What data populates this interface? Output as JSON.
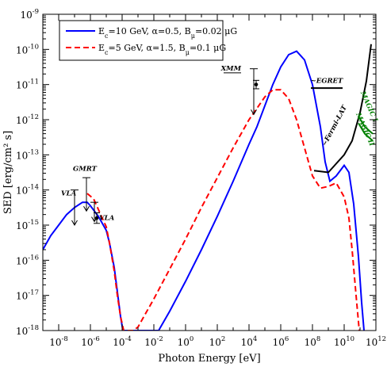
{
  "chart_data": {
    "type": "line",
    "xlabel": "Photon Energy [eV]",
    "ylabel": "SED [erg/cm² s]",
    "x_scale": "log",
    "y_scale": "log",
    "xlim_log10": [
      -9,
      12
    ],
    "ylim_log10": [
      -18,
      -9
    ],
    "x_ticks": [
      {
        "exp": -8,
        "base": "10",
        "sup": "-8"
      },
      {
        "exp": -6,
        "base": "10",
        "sup": "-6"
      },
      {
        "exp": -4,
        "base": "10",
        "sup": "-4"
      },
      {
        "exp": -2,
        "base": "10",
        "sup": "-2"
      },
      {
        "exp": 0,
        "base": "10",
        "sup": "0"
      },
      {
        "exp": 2,
        "base": "10",
        "sup": "2"
      },
      {
        "exp": 4,
        "base": "10",
        "sup": "4"
      },
      {
        "exp": 6,
        "base": "10",
        "sup": "6"
      },
      {
        "exp": 8,
        "base": "10",
        "sup": "8"
      },
      {
        "exp": 10,
        "base": "10",
        "sup": "10"
      },
      {
        "exp": 12,
        "base": "10",
        "sup": "12"
      }
    ],
    "y_ticks": [
      {
        "exp": -18,
        "base": "10",
        "sup": "-18"
      },
      {
        "exp": -17,
        "base": "10",
        "sup": "-17"
      },
      {
        "exp": -16,
        "base": "10",
        "sup": "-16"
      },
      {
        "exp": -15,
        "base": "10",
        "sup": "-15"
      },
      {
        "exp": -14,
        "base": "10",
        "sup": "-14"
      },
      {
        "exp": -13,
        "base": "10",
        "sup": "-13"
      },
      {
        "exp": -12,
        "base": "10",
        "sup": "-12"
      },
      {
        "exp": -11,
        "base": "10",
        "sup": "-11"
      },
      {
        "exp": -10,
        "base": "10",
        "sup": "-10"
      },
      {
        "exp": -9,
        "base": "10",
        "sup": "-9"
      }
    ],
    "legend_position": "top-left",
    "series": [
      {
        "name": "Ec=10 GeV, α=0.5, Bμ=0.02 μG",
        "legend_parts": {
          "e": "E",
          "c": "c",
          "mid": "=10 GeV, α=0.5, B",
          "mu": "μ",
          "end": "=0.02 μG"
        },
        "color": "#0000ff",
        "dash": "solid",
        "points_log10": [
          [
            -9,
            -15.7
          ],
          [
            -8.5,
            -15.3
          ],
          [
            -8,
            -15.0
          ],
          [
            -7.5,
            -14.7
          ],
          [
            -7,
            -14.5
          ],
          [
            -6.5,
            -14.35
          ],
          [
            -6.2,
            -14.35
          ],
          [
            -6,
            -14.45
          ],
          [
            -5.5,
            -14.75
          ],
          [
            -5,
            -15.15
          ],
          [
            -4.8,
            -15.5
          ],
          [
            -4.5,
            -16.2
          ],
          [
            -4.3,
            -16.9
          ],
          [
            -4.1,
            -17.6
          ],
          [
            -3.95,
            -18.0
          ],
          [
            -1.7,
            -18.0
          ],
          [
            -1,
            -17.45
          ],
          [
            0,
            -16.6
          ],
          [
            1,
            -15.7
          ],
          [
            2,
            -14.75
          ],
          [
            3,
            -13.75
          ],
          [
            4,
            -12.7
          ],
          [
            4.5,
            -12.2
          ],
          [
            5,
            -11.6
          ],
          [
            5.5,
            -11.0
          ],
          [
            6,
            -10.5
          ],
          [
            6.5,
            -10.15
          ],
          [
            7,
            -10.05
          ],
          [
            7.5,
            -10.3
          ],
          [
            8,
            -11.0
          ],
          [
            8.5,
            -12.2
          ],
          [
            8.8,
            -13.2
          ],
          [
            9.1,
            -13.75
          ],
          [
            9.5,
            -13.6
          ],
          [
            10,
            -13.3
          ],
          [
            10.3,
            -13.5
          ],
          [
            10.6,
            -14.4
          ],
          [
            10.9,
            -15.9
          ],
          [
            11.1,
            -17.2
          ],
          [
            11.25,
            -18.0
          ]
        ]
      },
      {
        "name": "Ec=5 GeV, α=1.5, B μ=0.1 μG",
        "legend_parts": {
          "e": "E",
          "c": "c",
          "mid": "=5 GeV, α=1.5, B",
          "mu": "μ",
          "end": "=0.1 μG"
        },
        "color": "#ff0000",
        "dash": "dashed",
        "points_log10": [
          [
            -6.2,
            -14.1
          ],
          [
            -5.8,
            -14.25
          ],
          [
            -5.5,
            -14.55
          ],
          [
            -5,
            -15.05
          ],
          [
            -4.8,
            -15.5
          ],
          [
            -4.5,
            -16.3
          ],
          [
            -4.3,
            -17.0
          ],
          [
            -4.1,
            -17.6
          ],
          [
            -3.9,
            -18.0
          ],
          [
            -3.3,
            -18.0
          ],
          [
            -3,
            -17.9
          ],
          [
            -2.5,
            -17.5
          ],
          [
            -2,
            -17.1
          ],
          [
            -1,
            -16.25
          ],
          [
            0,
            -15.4
          ],
          [
            1,
            -14.5
          ],
          [
            2,
            -13.65
          ],
          [
            3,
            -12.8
          ],
          [
            4,
            -12.0
          ],
          [
            5,
            -11.35
          ],
          [
            5.5,
            -11.15
          ],
          [
            6,
            -11.15
          ],
          [
            6.5,
            -11.4
          ],
          [
            7,
            -12.0
          ],
          [
            7.5,
            -12.8
          ],
          [
            8,
            -13.6
          ],
          [
            8.5,
            -13.95
          ],
          [
            9,
            -13.9
          ],
          [
            9.5,
            -13.8
          ],
          [
            10,
            -14.2
          ],
          [
            10.3,
            -14.8
          ],
          [
            10.5,
            -15.7
          ],
          [
            10.75,
            -17.0
          ],
          [
            10.95,
            -18.0
          ]
        ]
      }
    ],
    "limit_curves": [
      {
        "name": "EGRET",
        "color": "#000000",
        "points_log10": [
          [
            7.9,
            -11.1
          ],
          [
            9.9,
            -11.1
          ]
        ]
      },
      {
        "name": "Fermi-LAT",
        "color": "#000000",
        "points_log10": [
          [
            8.1,
            -13.45
          ],
          [
            9.0,
            -13.5
          ],
          [
            10.0,
            -13.0
          ],
          [
            10.5,
            -12.6
          ],
          [
            11.0,
            -11.8
          ],
          [
            11.4,
            -10.9
          ],
          [
            11.7,
            -9.85
          ]
        ]
      },
      {
        "name": "MAGIC I",
        "color": "#008000",
        "points_log10": [
          [
            10.9,
            -11.9
          ],
          [
            11.3,
            -12.2
          ],
          [
            11.8,
            -12.4
          ]
        ]
      },
      {
        "name": "MAGIC II",
        "color": "#008000",
        "points_log10": [
          [
            10.9,
            -12.1
          ],
          [
            11.3,
            -12.4
          ],
          [
            11.8,
            -12.6
          ]
        ]
      }
    ],
    "upper_limits": [
      {
        "name": "VLA",
        "x": -7.0,
        "y_top": -14.0,
        "y_bottom": -15.0
      },
      {
        "name": "GMRT",
        "x": -6.25,
        "y_top": -13.65,
        "y_bottom": -14.6
      },
      {
        "name": "VLA",
        "x": -5.75,
        "y_top": -14.35,
        "y_bottom": -14.9
      },
      {
        "name": "XMM",
        "x": 4.3,
        "y_top": -10.55,
        "y_bottom": -11.85
      }
    ],
    "data_points": [
      {
        "x": -5.6,
        "y": -14.8,
        "yerr_lo": 0.15,
        "yerr_hi": 0.15
      },
      {
        "x": 4.45,
        "y": -11.0,
        "yerr_lo": 0.12,
        "yerr_hi": 0.12
      }
    ],
    "annotations": [
      {
        "text": "VLA",
        "x": -7.85,
        "y": -14.15,
        "anchor": "start",
        "rotate": 0,
        "color": "#000000"
      },
      {
        "text": "GMRT",
        "x": -6.35,
        "y": -13.45,
        "anchor": "middle",
        "rotate": 0,
        "color": "#000000"
      },
      {
        "text": "VLA",
        "x": -5.45,
        "y": -14.85,
        "anchor": "start",
        "rotate": 0,
        "color": "#000000"
      },
      {
        "text": "XMM",
        "x": 3.5,
        "y": -10.6,
        "anchor": "end",
        "rotate": 0,
        "color": "#000000"
      },
      {
        "text": "~EGRET",
        "x": 8.9,
        "y": -10.95,
        "anchor": "middle",
        "rotate": 0,
        "color": "#000000"
      },
      {
        "text": "~Fermi-LAT",
        "x": 9.5,
        "y": -12.2,
        "anchor": "middle",
        "rotate": -62,
        "color": "#000000"
      },
      {
        "text": "MAGIC I",
        "x": 11.45,
        "y": -11.65,
        "anchor": "middle",
        "rotate": 66,
        "color": "#008000"
      },
      {
        "text": "MAGIC II",
        "x": 11.2,
        "y": -12.3,
        "anchor": "middle",
        "rotate": 66,
        "color": "#008000"
      }
    ]
  }
}
